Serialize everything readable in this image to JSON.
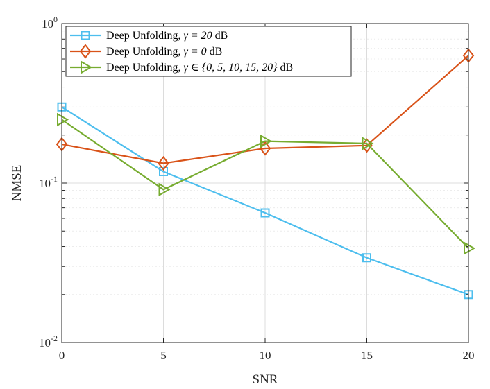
{
  "chart_data": {
    "type": "line",
    "xlabel": "SNR",
    "ylabel": "NMSE",
    "yscale": "log",
    "x": [
      0,
      5,
      10,
      15,
      20
    ],
    "xlim": [
      0,
      20
    ],
    "ylim": [
      0.01,
      1
    ],
    "x_ticks": [
      "0",
      "5",
      "10",
      "15",
      "20"
    ],
    "y_ticks": [
      {
        "value": 0.01,
        "base": "10",
        "exp": "-2"
      },
      {
        "value": 0.1,
        "base": "10",
        "exp": "-1"
      },
      {
        "value": 1,
        "base": "10",
        "exp": "0"
      }
    ],
    "grid": true,
    "legend_position": "top-left",
    "series": [
      {
        "name": "Deep Unfolding, γ = 20 dB",
        "legend_prefix": "Deep Unfolding, ",
        "legend_math": "γ = 20",
        "legend_suffix": " dB",
        "color": "#4DBEEE",
        "marker": "square",
        "values": [
          0.3,
          0.118,
          0.065,
          0.034,
          0.02
        ]
      },
      {
        "name": "Deep Unfolding, γ = 0 dB",
        "legend_prefix": "Deep Unfolding, ",
        "legend_math": "γ = 0",
        "legend_suffix": " dB",
        "color": "#D95319",
        "marker": "diamond",
        "values": [
          0.175,
          0.133,
          0.165,
          0.172,
          0.63
        ]
      },
      {
        "name": "Deep Unfolding, γ ∈ {0, 5, 10, 15, 20} dB",
        "legend_prefix": "Deep Unfolding, ",
        "legend_math": "γ ∈ {0, 5, 10, 15, 20}",
        "legend_suffix": " dB",
        "color": "#77AC30",
        "marker": "triangle-right",
        "values": [
          0.25,
          0.091,
          0.183,
          0.177,
          0.039
        ]
      }
    ]
  }
}
